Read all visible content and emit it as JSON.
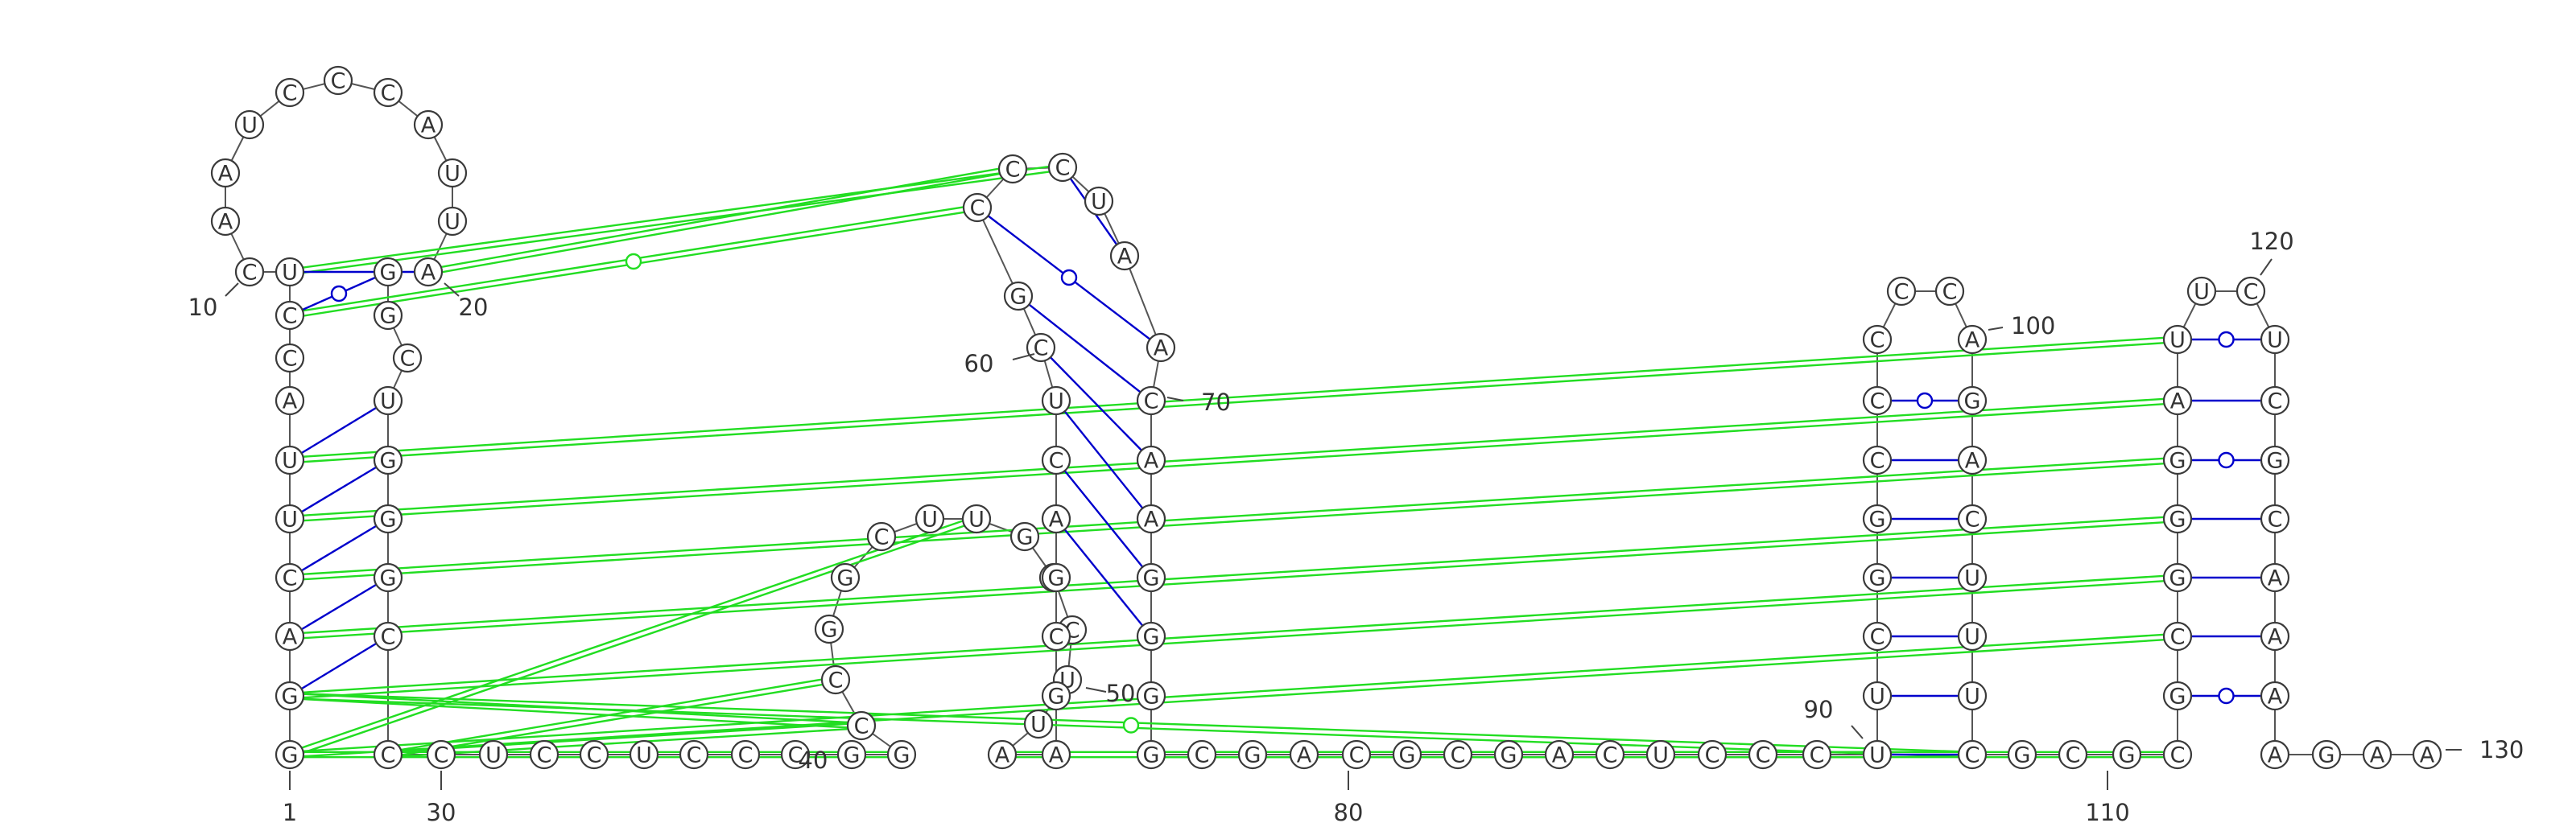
{
  "sequence": "GGACUUACCUCAAUCCCAUUAGGCUGGGCCCUCCUCCCGGCCGGCUUGGCUUAAGCGACUCGCCCUAACAAGGGGCGACGCGACUCCCUUCGGCCCCCAGACUUUCGCGCGCGGGAUUCUCGCAAAAGAA",
  "position_labels": [
    "1",
    "10",
    "20",
    "30",
    "40",
    "50",
    "60",
    "70",
    "80",
    "90",
    "100",
    "110",
    "120",
    "130"
  ],
  "colors": {
    "backbone": "#555555",
    "canonical_pair": "#0000cc",
    "tertiary_interaction": "#22dd22"
  }
}
